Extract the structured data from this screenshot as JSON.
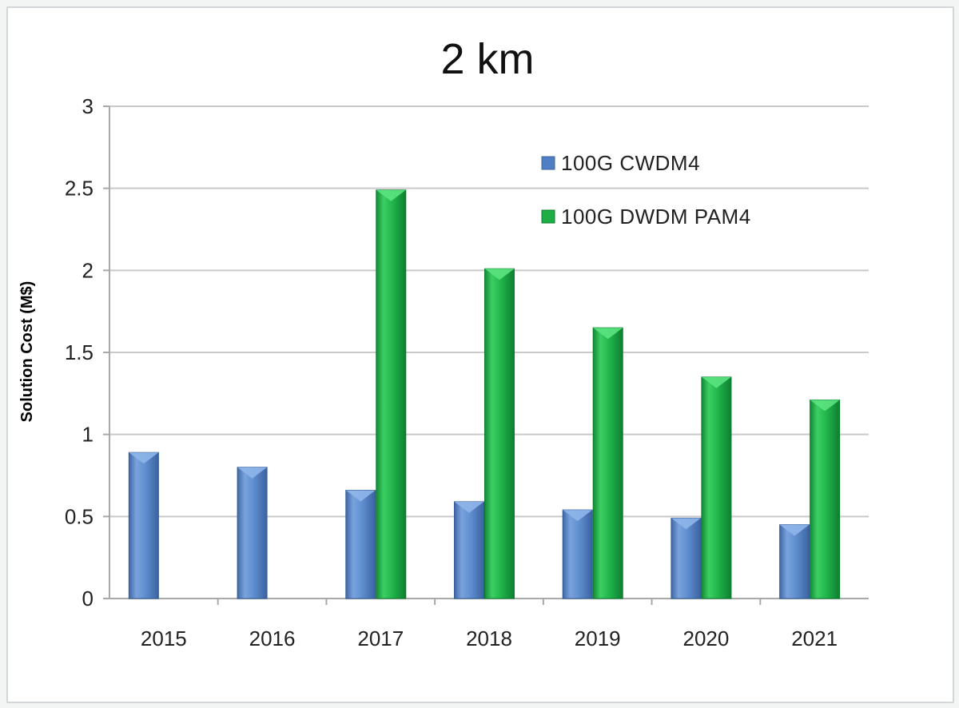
{
  "chart_data": {
    "type": "bar",
    "title": "2 km",
    "xlabel": "",
    "ylabel": "Solution Cost (M$)",
    "categories": [
      "2015",
      "2016",
      "2017",
      "2018",
      "2019",
      "2020",
      "2021"
    ],
    "series": [
      {
        "name": "100G CWDM4",
        "color": "#4f7fc2",
        "values": [
          0.89,
          0.8,
          0.66,
          0.59,
          0.54,
          0.49,
          0.45
        ]
      },
      {
        "name": "100G DWDM PAM4",
        "color": "#1fae45",
        "values": [
          null,
          null,
          2.49,
          2.01,
          1.65,
          1.35,
          1.21
        ]
      }
    ],
    "ylim": [
      0,
      3
    ],
    "yticks": [
      "0",
      "0.5",
      "1",
      "1.5",
      "2",
      "2.5",
      "3"
    ],
    "grid": true,
    "legend_position": "top-right"
  }
}
